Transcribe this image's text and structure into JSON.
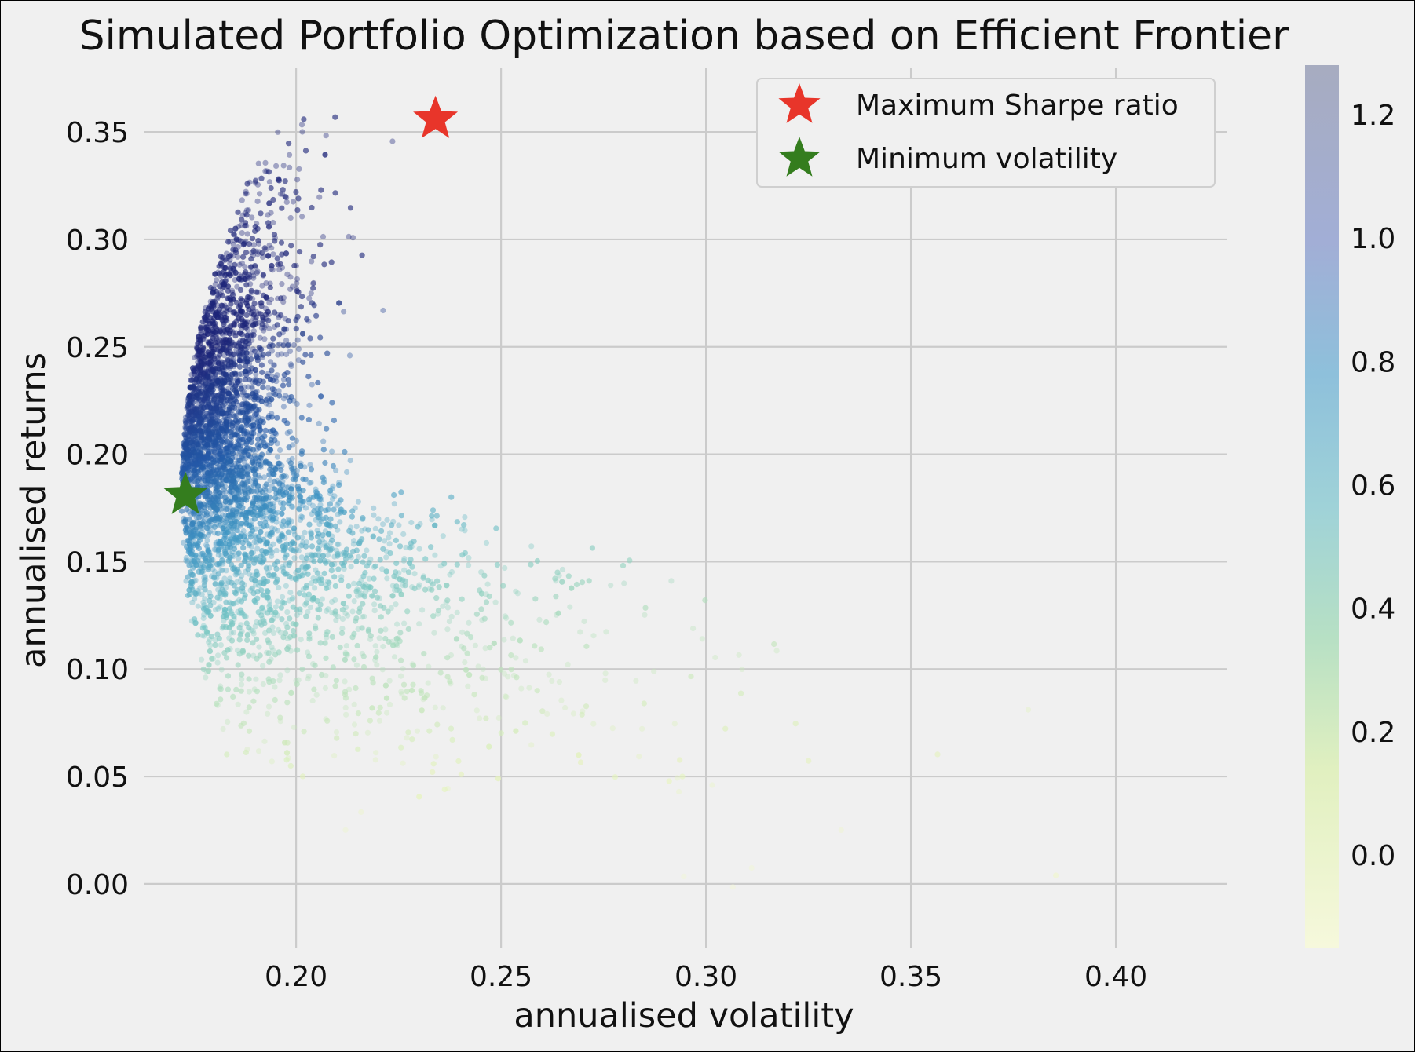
{
  "chart_data": {
    "type": "scatter",
    "title": "Simulated Portfolio Optimization based on Efficient Frontier",
    "xlabel": "annualised volatility",
    "ylabel": "annualised returns",
    "xlim": [
      0.163,
      0.427
    ],
    "ylim": [
      -0.03,
      0.38
    ],
    "x_ticks": [
      0.2,
      0.25,
      0.3,
      0.35,
      0.4
    ],
    "x_tick_labels": [
      "0.20",
      "0.25",
      "0.30",
      "0.35",
      "0.40"
    ],
    "y_ticks": [
      0.0,
      0.05,
      0.1,
      0.15,
      0.2,
      0.25,
      0.3,
      0.35
    ],
    "y_tick_labels": [
      "0.00",
      "0.05",
      "0.10",
      "0.15",
      "0.20",
      "0.25",
      "0.30",
      "0.35"
    ],
    "grid": true,
    "colormap": "YlGnBu",
    "colorbar": {
      "range": [
        -0.15,
        1.28
      ],
      "ticks": [
        0.0,
        0.2,
        0.4,
        0.6,
        0.8,
        1.0,
        1.2
      ],
      "tick_labels": [
        "0.0",
        "0.2",
        "0.4",
        "0.6",
        "0.8",
        "1.0",
        "1.2"
      ]
    },
    "markers": [
      {
        "name": "Maximum Sharpe ratio",
        "x": 0.234,
        "y": 0.356,
        "color": "#e8352a",
        "symbol": "star"
      },
      {
        "name": "Minimum volatility",
        "x": 0.173,
        "y": 0.181,
        "color": "#347d1e",
        "symbol": "star"
      }
    ],
    "legend": {
      "position": "top-right",
      "entries": [
        "Maximum Sharpe ratio",
        "Minimum volatility"
      ]
    },
    "scatter_summary": {
      "description_points": [
        {
          "x": 0.173,
          "y": 0.18
        },
        {
          "x": 0.185,
          "y": 0.24
        },
        {
          "x": 0.2,
          "y": 0.29
        },
        {
          "x": 0.225,
          "y": 0.335
        },
        {
          "x": 0.24,
          "y": 0.36
        },
        {
          "x": 0.21,
          "y": 0.12
        },
        {
          "x": 0.25,
          "y": 0.12
        },
        {
          "x": 0.3,
          "y": 0.07
        },
        {
          "x": 0.35,
          "y": 0.05
        },
        {
          "x": 0.415,
          "y": 0.01
        }
      ]
    }
  }
}
